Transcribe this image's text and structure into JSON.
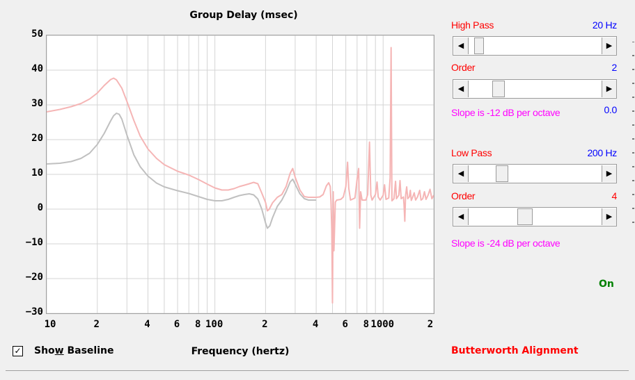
{
  "chart_data": {
    "type": "line",
    "title": "Group Delay (msec)",
    "xlabel": "Frequency (hertz)",
    "ylabel": "",
    "x_scale": "log",
    "xlim": [
      10,
      2000
    ],
    "ylim": [
      -30,
      50
    ],
    "y_ticks": [
      "50",
      "40",
      "30",
      "20",
      "10",
      "0",
      "−10",
      "−20",
      "−30"
    ],
    "x_ticks": [
      "10",
      "2",
      "4",
      "6",
      "8",
      "100",
      "2",
      "4",
      "6",
      "8",
      "1000",
      "2"
    ],
    "series": [
      {
        "color": "#f5b5b5",
        "points": [
          [
            10,
            28
          ],
          [
            12,
            28.7
          ],
          [
            14,
            29.5
          ],
          [
            16,
            30.4
          ],
          [
            18,
            31.7
          ],
          [
            20,
            33.4
          ],
          [
            22,
            35.6
          ],
          [
            24,
            37.3
          ],
          [
            25,
            37.7
          ],
          [
            26,
            37.2
          ],
          [
            28,
            34.8
          ],
          [
            30,
            31
          ],
          [
            33,
            25.5
          ],
          [
            36,
            21
          ],
          [
            40,
            17.3
          ],
          [
            45,
            14.6
          ],
          [
            50,
            12.8
          ],
          [
            60,
            10.9
          ],
          [
            70,
            9.8
          ],
          [
            80,
            8.5
          ],
          [
            90,
            7.2
          ],
          [
            100,
            6.1
          ],
          [
            110,
            5.5
          ],
          [
            120,
            5.5
          ],
          [
            130,
            5.9
          ],
          [
            140,
            6.5
          ],
          [
            150,
            6.9
          ],
          [
            160,
            7.3
          ],
          [
            170,
            7.7
          ],
          [
            180,
            7.3
          ],
          [
            190,
            4.6
          ],
          [
            200,
            1.9
          ],
          [
            205,
            -0.5
          ],
          [
            210,
            -0.1
          ],
          [
            220,
            1.8
          ],
          [
            235,
            3.4
          ],
          [
            250,
            4.2
          ],
          [
            265,
            6.5
          ],
          [
            280,
            10.3
          ],
          [
            290,
            11.7
          ],
          [
            300,
            9.2
          ],
          [
            320,
            5.5
          ],
          [
            340,
            3.6
          ],
          [
            360,
            3.4
          ],
          [
            400,
            3.4
          ],
          [
            420,
            3.5
          ],
          [
            440,
            4.2
          ],
          [
            460,
            6.7
          ],
          [
            475,
            7.6
          ],
          [
            485,
            6.5
          ],
          [
            490,
            2
          ],
          [
            495,
            -6
          ],
          [
            500,
            -27
          ],
          [
            505,
            5
          ],
          [
            510,
            -12
          ],
          [
            520,
            2
          ],
          [
            530,
            2.6
          ],
          [
            560,
            2.8
          ],
          [
            580,
            3.5
          ],
          [
            600,
            6.5
          ],
          [
            615,
            13.5
          ],
          [
            625,
            6
          ],
          [
            640,
            2.6
          ],
          [
            680,
            3.2
          ],
          [
            700,
            8.5
          ],
          [
            715,
            11.7
          ],
          [
            725,
            -5.5
          ],
          [
            735,
            5
          ],
          [
            750,
            2.6
          ],
          [
            790,
            2.6
          ],
          [
            810,
            4.2
          ],
          [
            830,
            19.3
          ],
          [
            845,
            4
          ],
          [
            860,
            2.6
          ],
          [
            900,
            4.2
          ],
          [
            920,
            7.8
          ],
          [
            935,
            3.5
          ],
          [
            960,
            2.6
          ],
          [
            1000,
            4
          ],
          [
            1020,
            7
          ],
          [
            1040,
            2.8
          ],
          [
            1080,
            3.2
          ],
          [
            1100,
            9
          ],
          [
            1115,
            46.5
          ],
          [
            1128,
            2.4
          ],
          [
            1160,
            3
          ],
          [
            1185,
            8
          ],
          [
            1200,
            3
          ],
          [
            1240,
            4
          ],
          [
            1260,
            8.2
          ],
          [
            1280,
            3
          ],
          [
            1320,
            3.5
          ],
          [
            1330,
            1.5
          ],
          [
            1345,
            -3.5
          ],
          [
            1360,
            4
          ],
          [
            1380,
            6.4
          ],
          [
            1400,
            3
          ],
          [
            1430,
            3.5
          ],
          [
            1450,
            5.4
          ],
          [
            1470,
            2.5
          ],
          [
            1500,
            3.5
          ],
          [
            1530,
            4.7
          ],
          [
            1560,
            2.6
          ],
          [
            1600,
            3.5
          ],
          [
            1650,
            5.4
          ],
          [
            1680,
            2.6
          ],
          [
            1720,
            3
          ],
          [
            1760,
            5
          ],
          [
            1800,
            2.8
          ],
          [
            1850,
            4
          ],
          [
            1900,
            5.7
          ],
          [
            1950,
            3
          ],
          [
            2000,
            4
          ]
        ]
      },
      {
        "color": "#c0c0c0",
        "points": [
          [
            10,
            13
          ],
          [
            12,
            13.2
          ],
          [
            14,
            13.7
          ],
          [
            16,
            14.6
          ],
          [
            18,
            16.1
          ],
          [
            20,
            18.6
          ],
          [
            22,
            21.8
          ],
          [
            24,
            25.4
          ],
          [
            25,
            26.9
          ],
          [
            26,
            27.6
          ],
          [
            27,
            27.3
          ],
          [
            28,
            25.9
          ],
          [
            30,
            21.3
          ],
          [
            33,
            15.6
          ],
          [
            36,
            12.2
          ],
          [
            40,
            9.5
          ],
          [
            45,
            7.5
          ],
          [
            50,
            6.4
          ],
          [
            60,
            5.3
          ],
          [
            70,
            4.5
          ],
          [
            80,
            3.6
          ],
          [
            90,
            2.8
          ],
          [
            100,
            2.4
          ],
          [
            110,
            2.4
          ],
          [
            120,
            2.8
          ],
          [
            130,
            3.4
          ],
          [
            140,
            3.9
          ],
          [
            150,
            4.2
          ],
          [
            160,
            4.4
          ],
          [
            170,
            4.1
          ],
          [
            180,
            2.9
          ],
          [
            190,
            0
          ],
          [
            200,
            -4
          ],
          [
            205,
            -5.5
          ],
          [
            212,
            -4.8
          ],
          [
            220,
            -2.5
          ],
          [
            235,
            0.8
          ],
          [
            250,
            2.6
          ],
          [
            265,
            5
          ],
          [
            280,
            7.8
          ],
          [
            290,
            8.6
          ],
          [
            300,
            7.2
          ],
          [
            320,
            4.4
          ],
          [
            340,
            3
          ],
          [
            360,
            2.6
          ],
          [
            400,
            2.6
          ]
        ]
      }
    ]
  },
  "controls": {
    "high_pass": {
      "label": "High Pass",
      "value": "20 Hz",
      "position": 0.05
    },
    "high_order": {
      "label": "Order",
      "value": "2",
      "position": 0.2
    },
    "high_slope": {
      "text": "Slope is -12 dB per octave",
      "value": "0.0"
    },
    "low_pass": {
      "label": "Low Pass",
      "value": "200 Hz",
      "position": 0.23
    },
    "low_order": {
      "label": "Order",
      "value": "4",
      "position": 0.42
    },
    "low_slope": {
      "text": "Slope is -24 dB per octave"
    },
    "status": "On",
    "alignment": "Butterworth Alignment",
    "show_baseline": {
      "label_pre": "Sho",
      "label_u": "w",
      "label_post": " Baseline",
      "checked_mark": "✓"
    }
  },
  "colors": {
    "red_label": "#ff0000",
    "blue_value": "#0000ff",
    "magenta": "#ff00ff",
    "green": "#008000"
  }
}
